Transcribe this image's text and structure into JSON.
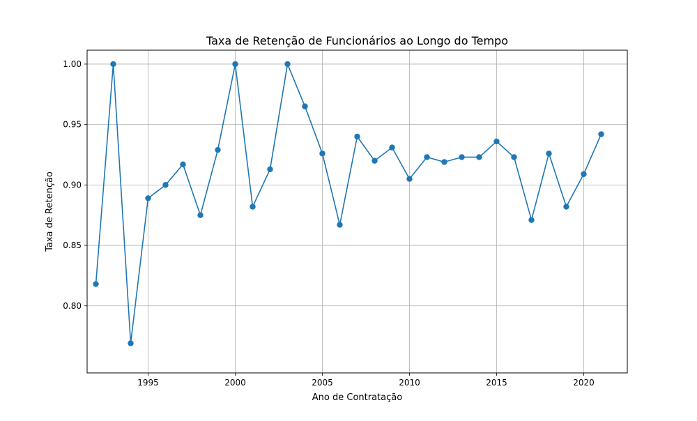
{
  "chart_data": {
    "type": "line",
    "title": "Taxa de Retenção de Funcionários ao Longo do Tempo",
    "xlabel": "Ano de Contratação",
    "ylabel": "Taxa de Retenção",
    "xlim": [
      1991.5,
      2022.5
    ],
    "ylim": [
      0.7445,
      1.0115
    ],
    "xticks": [
      1995,
      2000,
      2005,
      2010,
      2015,
      2020
    ],
    "yticks": [
      0.8,
      0.85,
      0.9,
      0.95,
      1.0
    ],
    "ytick_labels": [
      "0.80",
      "0.85",
      "0.90",
      "0.95",
      "1.00"
    ],
    "grid": true,
    "series": [
      {
        "color": "#1f77b4",
        "marker": "circle",
        "points": [
          {
            "x": 1992,
            "y": 0.818
          },
          {
            "x": 1993,
            "y": 1.0
          },
          {
            "x": 1994,
            "y": 0.769
          },
          {
            "x": 1995,
            "y": 0.889
          },
          {
            "x": 1996,
            "y": 0.9
          },
          {
            "x": 1997,
            "y": 0.917
          },
          {
            "x": 1998,
            "y": 0.875
          },
          {
            "x": 1999,
            "y": 0.929
          },
          {
            "x": 2000,
            "y": 1.0
          },
          {
            "x": 2001,
            "y": 0.882
          },
          {
            "x": 2002,
            "y": 0.913
          },
          {
            "x": 2003,
            "y": 1.0
          },
          {
            "x": 2004,
            "y": 0.965
          },
          {
            "x": 2005,
            "y": 0.926
          },
          {
            "x": 2006,
            "y": 0.867
          },
          {
            "x": 2007,
            "y": 0.94
          },
          {
            "x": 2008,
            "y": 0.92
          },
          {
            "x": 2009,
            "y": 0.931
          },
          {
            "x": 2010,
            "y": 0.905
          },
          {
            "x": 2011,
            "y": 0.923
          },
          {
            "x": 2012,
            "y": 0.919
          },
          {
            "x": 2013,
            "y": 0.923
          },
          {
            "x": 2014,
            "y": 0.923
          },
          {
            "x": 2015,
            "y": 0.936
          },
          {
            "x": 2016,
            "y": 0.923
          },
          {
            "x": 2017,
            "y": 0.871
          },
          {
            "x": 2018,
            "y": 0.926
          },
          {
            "x": 2019,
            "y": 0.882
          },
          {
            "x": 2020,
            "y": 0.909
          },
          {
            "x": 2021,
            "y": 0.942
          }
        ]
      }
    ]
  }
}
